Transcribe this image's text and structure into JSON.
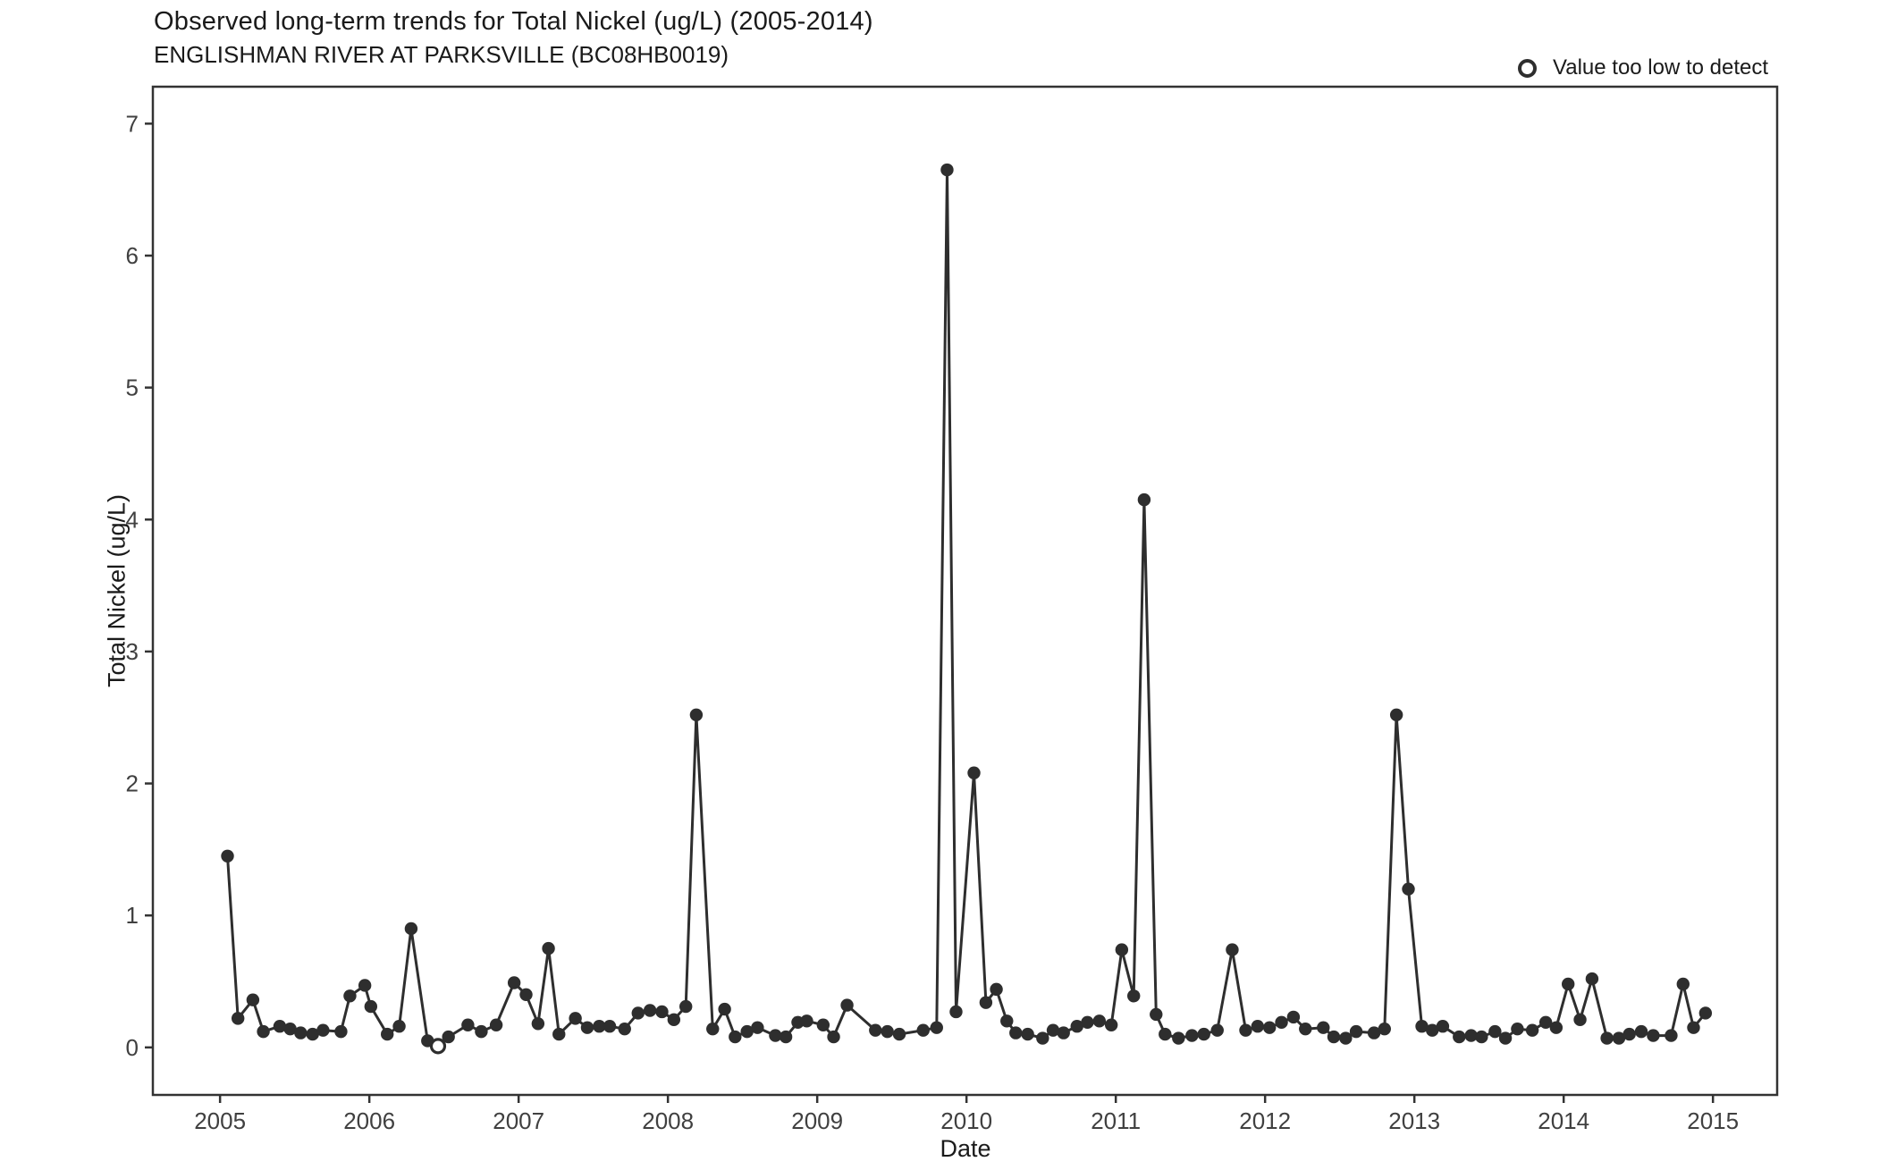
{
  "header": {
    "title": "Observed long-term trends for Total Nickel (ug/L) (2005-2014)",
    "subtitle": "ENGLISHMAN RIVER AT PARKSVILLE (BC08HB0019)"
  },
  "legend": {
    "label": "Value too low to detect",
    "marker": "open-circle-icon"
  },
  "chart_data": {
    "type": "line",
    "title": "Observed long-term trends for Total Nickel (ug/L) (2005-2014)",
    "subtitle": "ENGLISHMAN RIVER AT PARKSVILLE (BC08HB0019)",
    "xlabel": "Date",
    "ylabel": "Total Nickel (ug/L)",
    "grid": false,
    "legend_position": "top-right",
    "series_color": "#2e2e2e",
    "axis_color": "#333333",
    "tick_label_color": "#404040",
    "markers": {
      "detected": "filled-circle",
      "non_detect": "open-circle"
    },
    "xlim": [
      2004.55,
      2015.43
    ],
    "ylim": [
      -0.36,
      7.28
    ],
    "x_ticks": [
      2005,
      2006,
      2007,
      2008,
      2009,
      2010,
      2011,
      2012,
      2013,
      2014,
      2015
    ],
    "y_ticks": [
      0,
      1,
      2,
      3,
      4,
      5,
      6,
      7
    ],
    "points": [
      {
        "t": 2005.05,
        "v": 1.45
      },
      {
        "t": 2005.12,
        "v": 0.22
      },
      {
        "t": 2005.22,
        "v": 0.36
      },
      {
        "t": 2005.29,
        "v": 0.12
      },
      {
        "t": 2005.4,
        "v": 0.16
      },
      {
        "t": 2005.47,
        "v": 0.14
      },
      {
        "t": 2005.54,
        "v": 0.11
      },
      {
        "t": 2005.62,
        "v": 0.1
      },
      {
        "t": 2005.69,
        "v": 0.13
      },
      {
        "t": 2005.81,
        "v": 0.12
      },
      {
        "t": 2005.87,
        "v": 0.39
      },
      {
        "t": 2005.97,
        "v": 0.47
      },
      {
        "t": 2006.01,
        "v": 0.31
      },
      {
        "t": 2006.12,
        "v": 0.1
      },
      {
        "t": 2006.2,
        "v": 0.16
      },
      {
        "t": 2006.28,
        "v": 0.9
      },
      {
        "t": 2006.39,
        "v": 0.05
      },
      {
        "t": 2006.46,
        "v": 0.01,
        "non_detect": true
      },
      {
        "t": 2006.53,
        "v": 0.08
      },
      {
        "t": 2006.66,
        "v": 0.17
      },
      {
        "t": 2006.75,
        "v": 0.12
      },
      {
        "t": 2006.85,
        "v": 0.17
      },
      {
        "t": 2006.97,
        "v": 0.49
      },
      {
        "t": 2007.05,
        "v": 0.4
      },
      {
        "t": 2007.13,
        "v": 0.18
      },
      {
        "t": 2007.2,
        "v": 0.75
      },
      {
        "t": 2007.27,
        "v": 0.1
      },
      {
        "t": 2007.38,
        "v": 0.22
      },
      {
        "t": 2007.46,
        "v": 0.15
      },
      {
        "t": 2007.54,
        "v": 0.16
      },
      {
        "t": 2007.61,
        "v": 0.16
      },
      {
        "t": 2007.71,
        "v": 0.14
      },
      {
        "t": 2007.8,
        "v": 0.26
      },
      {
        "t": 2007.88,
        "v": 0.28
      },
      {
        "t": 2007.96,
        "v": 0.27
      },
      {
        "t": 2008.04,
        "v": 0.21
      },
      {
        "t": 2008.12,
        "v": 0.31
      },
      {
        "t": 2008.19,
        "v": 2.52
      },
      {
        "t": 2008.3,
        "v": 0.14
      },
      {
        "t": 2008.38,
        "v": 0.29
      },
      {
        "t": 2008.45,
        "v": 0.08
      },
      {
        "t": 2008.53,
        "v": 0.12
      },
      {
        "t": 2008.6,
        "v": 0.15
      },
      {
        "t": 2008.72,
        "v": 0.09
      },
      {
        "t": 2008.79,
        "v": 0.08
      },
      {
        "t": 2008.87,
        "v": 0.19
      },
      {
        "t": 2008.93,
        "v": 0.2
      },
      {
        "t": 2009.04,
        "v": 0.17
      },
      {
        "t": 2009.11,
        "v": 0.08
      },
      {
        "t": 2009.2,
        "v": 0.32
      },
      {
        "t": 2009.39,
        "v": 0.13
      },
      {
        "t": 2009.47,
        "v": 0.12
      },
      {
        "t": 2009.55,
        "v": 0.1
      },
      {
        "t": 2009.71,
        "v": 0.13
      },
      {
        "t": 2009.8,
        "v": 0.15
      },
      {
        "t": 2009.87,
        "v": 6.65
      },
      {
        "t": 2009.93,
        "v": 0.27
      },
      {
        "t": 2010.05,
        "v": 2.08
      },
      {
        "t": 2010.13,
        "v": 0.34
      },
      {
        "t": 2010.2,
        "v": 0.44
      },
      {
        "t": 2010.27,
        "v": 0.2
      },
      {
        "t": 2010.33,
        "v": 0.11
      },
      {
        "t": 2010.41,
        "v": 0.1
      },
      {
        "t": 2010.51,
        "v": 0.07
      },
      {
        "t": 2010.58,
        "v": 0.13
      },
      {
        "t": 2010.65,
        "v": 0.11
      },
      {
        "t": 2010.74,
        "v": 0.16
      },
      {
        "t": 2010.81,
        "v": 0.19
      },
      {
        "t": 2010.89,
        "v": 0.2
      },
      {
        "t": 2010.97,
        "v": 0.17
      },
      {
        "t": 2011.04,
        "v": 0.74
      },
      {
        "t": 2011.12,
        "v": 0.39
      },
      {
        "t": 2011.19,
        "v": 4.15
      },
      {
        "t": 2011.27,
        "v": 0.25
      },
      {
        "t": 2011.33,
        "v": 0.1
      },
      {
        "t": 2011.42,
        "v": 0.07
      },
      {
        "t": 2011.51,
        "v": 0.09
      },
      {
        "t": 2011.59,
        "v": 0.1
      },
      {
        "t": 2011.68,
        "v": 0.13
      },
      {
        "t": 2011.78,
        "v": 0.74
      },
      {
        "t": 2011.87,
        "v": 0.13
      },
      {
        "t": 2011.95,
        "v": 0.16
      },
      {
        "t": 2012.03,
        "v": 0.15
      },
      {
        "t": 2012.11,
        "v": 0.19
      },
      {
        "t": 2012.19,
        "v": 0.23
      },
      {
        "t": 2012.27,
        "v": 0.14
      },
      {
        "t": 2012.39,
        "v": 0.15
      },
      {
        "t": 2012.46,
        "v": 0.08
      },
      {
        "t": 2012.54,
        "v": 0.07
      },
      {
        "t": 2012.61,
        "v": 0.12
      },
      {
        "t": 2012.73,
        "v": 0.11
      },
      {
        "t": 2012.8,
        "v": 0.14
      },
      {
        "t": 2012.88,
        "v": 2.52
      },
      {
        "t": 2012.96,
        "v": 1.2
      },
      {
        "t": 2013.05,
        "v": 0.16
      },
      {
        "t": 2013.12,
        "v": 0.13
      },
      {
        "t": 2013.19,
        "v": 0.16
      },
      {
        "t": 2013.3,
        "v": 0.08
      },
      {
        "t": 2013.38,
        "v": 0.09
      },
      {
        "t": 2013.45,
        "v": 0.08
      },
      {
        "t": 2013.54,
        "v": 0.12
      },
      {
        "t": 2013.61,
        "v": 0.07
      },
      {
        "t": 2013.69,
        "v": 0.14
      },
      {
        "t": 2013.79,
        "v": 0.13
      },
      {
        "t": 2013.88,
        "v": 0.19
      },
      {
        "t": 2013.95,
        "v": 0.15
      },
      {
        "t": 2014.03,
        "v": 0.48
      },
      {
        "t": 2014.11,
        "v": 0.21
      },
      {
        "t": 2014.19,
        "v": 0.52
      },
      {
        "t": 2014.29,
        "v": 0.07
      },
      {
        "t": 2014.37,
        "v": 0.07
      },
      {
        "t": 2014.44,
        "v": 0.1
      },
      {
        "t": 2014.52,
        "v": 0.12
      },
      {
        "t": 2014.6,
        "v": 0.09
      },
      {
        "t": 2014.72,
        "v": 0.09
      },
      {
        "t": 2014.8,
        "v": 0.48
      },
      {
        "t": 2014.87,
        "v": 0.15
      },
      {
        "t": 2014.95,
        "v": 0.26
      }
    ]
  }
}
